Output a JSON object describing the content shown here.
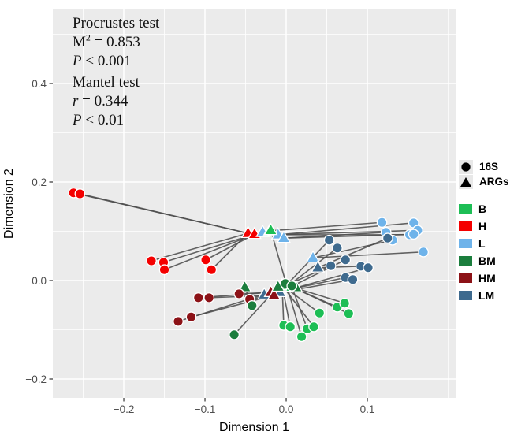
{
  "stats": {
    "procrustes_title": "Procrustes test",
    "m2_base": "M",
    "m2_exp": "2",
    "m2_rest": " = 0.853",
    "p1_italic": "P",
    "p1_rest": " < 0.001",
    "mantel_title": "Mantel test",
    "r_italic": "r",
    "r_rest": " = 0.344",
    "p2_italic": "P",
    "p2_rest": " < 0.01"
  },
  "legend": {
    "shape_items": [
      {
        "label": "16S",
        "shape": "circle"
      },
      {
        "label": "ARGs",
        "shape": "triangle"
      }
    ],
    "color_items": [
      {
        "label": "B",
        "color": "#1DBE55"
      },
      {
        "label": "H",
        "color": "#F40000"
      },
      {
        "label": "L",
        "color": "#6EB3EA"
      },
      {
        "label": "BM",
        "color": "#1B7E3D"
      },
      {
        "label": "HM",
        "color": "#8C1217"
      },
      {
        "label": "LM",
        "color": "#3E6A8E"
      }
    ]
  },
  "chart_data": {
    "type": "scatter",
    "title": "",
    "xlabel": "Dimension 1",
    "ylabel": "Dimension 2",
    "xlim": [
      -0.2874,
      0.2087
    ],
    "ylim": [
      -0.2384,
      0.5504
    ],
    "panel_bg": "#EBEBEB",
    "grid": true,
    "line_color": "#4D4D4D",
    "x_ticks": {
      "values": [
        -0.2,
        -0.1,
        0.0,
        0.1
      ],
      "labels": [
        "−0.2",
        "−0.1",
        "0.0",
        "0.1"
      ]
    },
    "y_ticks": {
      "values": [
        0.4,
        0.2,
        0.0,
        -0.2
      ],
      "labels": [
        "0.4",
        "0.2",
        "0.0",
        "−0.2"
      ]
    },
    "x_major": [
      -0.2,
      -0.1,
      0.0,
      0.1,
      0.2
    ],
    "x_minor": [
      -0.25,
      -0.15,
      -0.05,
      0.05,
      0.15
    ],
    "y_major": [
      0.4,
      0.2,
      0.0,
      -0.2
    ],
    "y_minor": [
      0.5,
      0.3,
      0.1,
      -0.1
    ],
    "shape_meaning": {
      "circle": "16S",
      "triangle": "ARGs"
    },
    "groups": [
      {
        "name": "H",
        "color": "#F40000",
        "circles": [
          [
            -0.262,
            0.178
          ],
          [
            -0.254,
            0.176
          ],
          [
            -0.166,
            0.04
          ],
          [
            -0.151,
            0.037
          ],
          [
            -0.15,
            0.022
          ],
          [
            -0.099,
            0.042
          ],
          [
            -0.092,
            0.022
          ]
        ],
        "triangles": [
          [
            -0.047,
            0.096
          ],
          [
            -0.039,
            0.094
          ]
        ],
        "links": [
          [
            0,
            0
          ],
          [
            1,
            0
          ],
          [
            2,
            0
          ],
          [
            3,
            1
          ],
          [
            4,
            1
          ],
          [
            5,
            1
          ],
          [
            6,
            0
          ]
        ]
      },
      {
        "name": "L",
        "color": "#6EB3EA",
        "circles": [
          [
            0.118,
            0.118
          ],
          [
            0.157,
            0.117
          ],
          [
            0.123,
            0.098
          ],
          [
            0.152,
            0.093
          ],
          [
            0.162,
            0.102
          ],
          [
            0.157,
            0.094
          ],
          [
            0.131,
            0.082
          ],
          [
            0.169,
            0.058
          ]
        ],
        "triangles": [
          [
            -0.029,
            0.098
          ],
          [
            -0.02,
            0.101
          ],
          [
            -0.01,
            0.093
          ],
          [
            -0.003,
            0.086
          ],
          [
            0.033,
            0.046
          ]
        ],
        "links": [
          [
            0,
            1
          ],
          [
            1,
            2
          ],
          [
            2,
            3
          ],
          [
            3,
            2
          ],
          [
            4,
            2
          ],
          [
            5,
            3
          ],
          [
            6,
            4
          ],
          [
            7,
            4
          ]
        ]
      },
      {
        "name": "LM",
        "color": "#3E6A8E",
        "circles": [
          [
            0.053,
            0.082
          ],
          [
            0.063,
            0.066
          ],
          [
            0.125,
            0.086
          ],
          [
            0.073,
            0.042
          ],
          [
            0.055,
            0.03
          ],
          [
            0.092,
            0.029
          ],
          [
            0.101,
            0.026
          ],
          [
            0.073,
            0.006
          ],
          [
            0.082,
            0.002
          ]
        ],
        "triangles": [
          [
            0.039,
            0.026
          ],
          [
            -0.008,
            -0.024
          ],
          [
            -0.027,
            -0.029
          ]
        ],
        "links": [
          [
            0,
            1
          ],
          [
            1,
            1
          ],
          [
            2,
            0
          ],
          [
            3,
            1
          ],
          [
            4,
            2
          ],
          [
            5,
            0
          ],
          [
            6,
            1
          ],
          [
            7,
            2
          ],
          [
            8,
            1
          ]
        ]
      },
      {
        "name": "HM",
        "color": "#8C1217",
        "circles": [
          [
            -0.108,
            -0.035
          ],
          [
            -0.095,
            -0.035
          ],
          [
            -0.058,
            -0.027
          ],
          [
            -0.045,
            -0.038
          ],
          [
            -0.133,
            -0.083
          ],
          [
            -0.117,
            -0.074
          ]
        ],
        "triangles": [
          [
            -0.019,
            -0.024
          ],
          [
            -0.015,
            -0.03
          ]
        ],
        "links": [
          [
            0,
            0
          ],
          [
            1,
            1
          ],
          [
            2,
            0
          ],
          [
            3,
            1
          ],
          [
            4,
            0
          ],
          [
            5,
            1
          ]
        ]
      },
      {
        "name": "B",
        "color": "#1DBE55",
        "circles": [
          [
            0.041,
            -0.066
          ],
          [
            0.063,
            -0.054
          ],
          [
            0.072,
            -0.046
          ],
          [
            0.077,
            -0.067
          ],
          [
            -0.003,
            -0.091
          ],
          [
            0.005,
            -0.094
          ],
          [
            0.026,
            -0.098
          ],
          [
            0.034,
            -0.094
          ],
          [
            0.019,
            -0.114
          ]
        ],
        "triangles": [
          [
            -0.019,
            0.102
          ],
          [
            -0.005,
            -0.01
          ],
          [
            0.007,
            -0.013
          ]
        ],
        "links": [
          [
            0,
            1
          ],
          [
            1,
            2
          ],
          [
            2,
            2
          ],
          [
            3,
            2
          ],
          [
            4,
            1
          ],
          [
            5,
            1
          ],
          [
            6,
            2
          ],
          [
            7,
            1
          ],
          [
            8,
            0
          ]
        ]
      },
      {
        "name": "BM",
        "color": "#1B7E3D",
        "circles": [
          [
            -0.064,
            -0.11
          ],
          [
            -0.042,
            -0.051
          ],
          [
            -0.001,
            -0.006
          ],
          [
            0.007,
            -0.011
          ]
        ],
        "triangles": [
          [
            -0.051,
            -0.014
          ],
          [
            -0.01,
            -0.013
          ],
          [
            0.012,
            -0.014
          ]
        ],
        "links": [
          [
            0,
            1
          ],
          [
            1,
            0
          ],
          [
            2,
            1
          ],
          [
            3,
            2
          ]
        ]
      }
    ]
  }
}
